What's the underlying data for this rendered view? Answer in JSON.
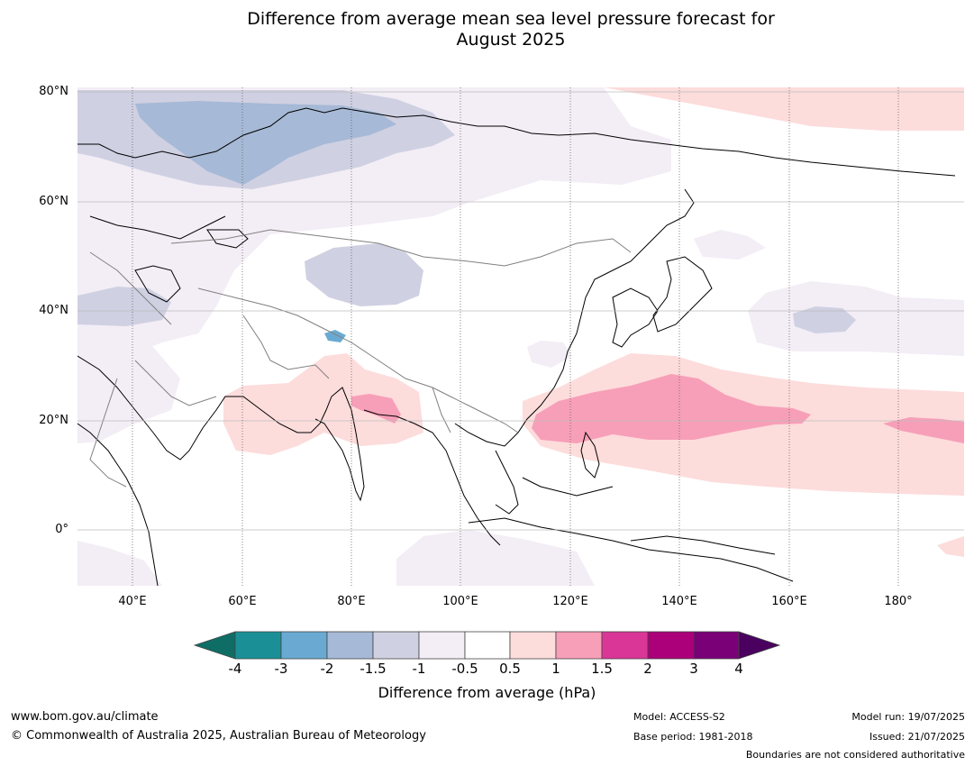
{
  "title_line1": "Difference from average mean sea level pressure forecast for",
  "title_line2": "August 2025",
  "map": {
    "lat_labels": [
      "80°N",
      "60°N",
      "40°N",
      "20°N",
      "0°"
    ],
    "lon_labels": [
      "40°E",
      "60°E",
      "80°E",
      "100°E",
      "120°E",
      "140°E",
      "160°E",
      "180°"
    ],
    "colors": {
      "neg4": "#0e6e66",
      "neg3": "#1a9096",
      "neg2": "#6aaad2",
      "neg1_5": "#a6b9d6",
      "neg1": "#cfd0e2",
      "neg0_5": "#f3edf5",
      "zero": "#ffffff",
      "pos0_5": "#fddcdc",
      "pos1": "#f79fb8",
      "pos1_5": "#d93698",
      "pos2": "#ab0079",
      "pos3": "#7a0077",
      "pos4": "#4a005e",
      "land_outline": "#000000",
      "border": "#808080",
      "grid": "#bdbdbd"
    }
  },
  "colorbar": {
    "ticks": [
      "-4",
      "-3",
      "-2",
      "-1.5",
      "-1",
      "-0.5",
      "0.5",
      "1",
      "1.5",
      "2",
      "3",
      "4"
    ],
    "label": "Difference from average (hPa)"
  },
  "footer": {
    "website": "www.bom.gov.au/climate",
    "copyright": "© Commonwealth of Australia 2025, Australian Bureau of Meteorology",
    "model": "Model: ACCESS-S2",
    "base_period": "Base period: 1981-2018",
    "model_run": "Model run: 19/07/2025",
    "issued": "Issued: 21/07/2025",
    "disclaimer": "Boundaries are not considered authoritative"
  }
}
